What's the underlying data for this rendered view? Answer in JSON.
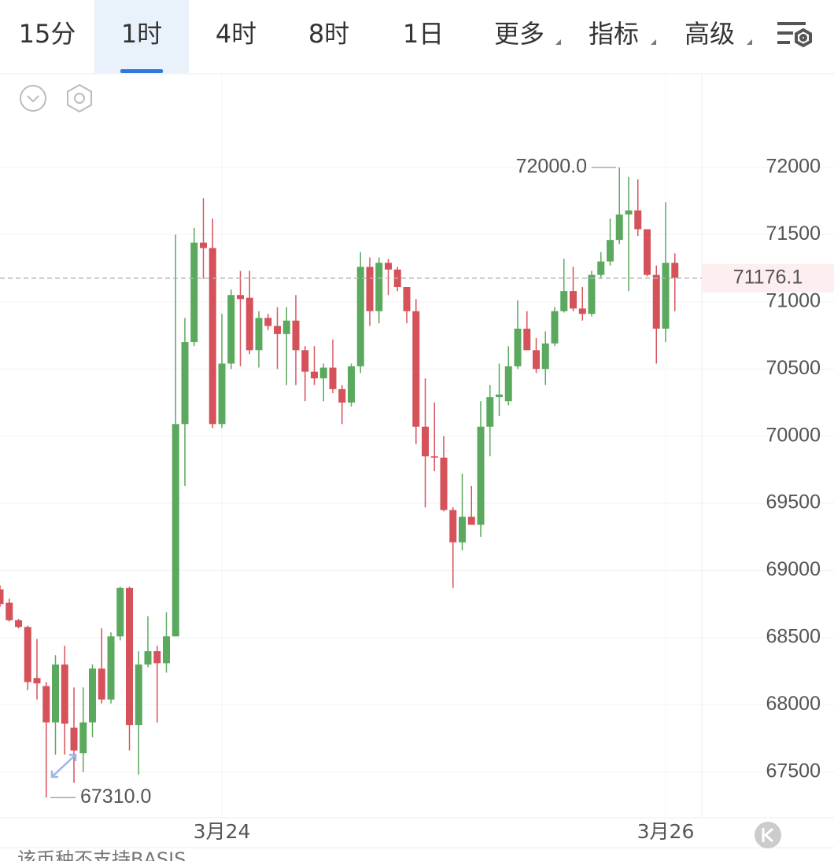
{
  "tabs": [
    "15分",
    "1时",
    "4时",
    "8时",
    "1日",
    "更多",
    "指标",
    "高级"
  ],
  "active_tab": 1,
  "footer_note": "该币种不支持BASIS",
  "chart_data": {
    "type": "candlestick",
    "up_color": "#5aa95e",
    "down_color": "#d6525b",
    "categories": [
      null,
      null,
      null,
      null,
      null,
      null,
      null,
      null,
      null,
      null,
      null,
      null,
      null,
      null,
      null,
      null,
      null,
      null,
      null,
      null,
      null,
      null,
      null,
      null,
      "3月24",
      null,
      null,
      null,
      null,
      null,
      null,
      null,
      null,
      null,
      null,
      null,
      null,
      null,
      null,
      null,
      null,
      null,
      null,
      null,
      null,
      null,
      null,
      null,
      null,
      null,
      null,
      null,
      null,
      null,
      null,
      null,
      null,
      null,
      null,
      null,
      null,
      null,
      null,
      null,
      null,
      null,
      null,
      null,
      null,
      null,
      null,
      null,
      "3月26",
      null
    ],
    "open": [
      68860,
      68760,
      68630,
      68580,
      68200,
      68140,
      67870,
      68300,
      67830,
      67640,
      67870,
      68270,
      68040,
      68510,
      68870,
      67850,
      68300,
      68400,
      68310,
      68510,
      70090,
      70700,
      71440,
      71400,
      70090,
      70540,
      71050,
      71030,
      70640,
      70880,
      70820,
      70760,
      70860,
      70640,
      70480,
      70430,
      70510,
      70350,
      70250,
      70520,
      71260,
      70930,
      71290,
      71240,
      71110,
      70930,
      70070,
      69850,
      69840,
      69450,
      69210,
      69400,
      69340,
      70070,
      70290,
      70260,
      70520,
      70800,
      70640,
      70500,
      70690,
      70930,
      71080,
      70950,
      70910,
      71200,
      71300,
      71460,
      71650,
      71680,
      71540,
      71200,
      70800,
      71290
    ],
    "high": [
      68890,
      68790,
      68640,
      68590,
      68490,
      68170,
      68370,
      68440,
      68130,
      68130,
      68300,
      68570,
      68540,
      68880,
      68880,
      68400,
      68660,
      68440,
      68690,
      71500,
      70880,
      71550,
      71770,
      71620,
      70910,
      71090,
      71230,
      71230,
      70930,
      70910,
      70960,
      70960,
      71050,
      70670,
      70670,
      70540,
      70720,
      70380,
      70540,
      71370,
      71330,
      71330,
      71320,
      71260,
      71110,
      71020,
      70430,
      70250,
      70000,
      69470,
      69720,
      69630,
      70260,
      70380,
      70540,
      70670,
      71010,
      70930,
      70730,
      70780,
      70960,
      71320,
      71260,
      71110,
      71230,
      71370,
      71620,
      72000,
      71930,
      71910,
      71540,
      71270,
      71740,
      71360
    ],
    "low": [
      68730,
      68620,
      68570,
      68110,
      68040,
      67310,
      67630,
      67630,
      67420,
      67500,
      67760,
      68010,
      68010,
      68480,
      67660,
      67480,
      68280,
      67870,
      68240,
      68510,
      69630,
      70670,
      71170,
      70060,
      70060,
      70500,
      70520,
      70610,
      70510,
      70790,
      70500,
      70380,
      70380,
      70260,
      70380,
      70260,
      70320,
      70090,
      70220,
      70470,
      70820,
      70840,
      71050,
      71080,
      70840,
      69940,
      69470,
      69740,
      69440,
      68870,
      69150,
      69340,
      69250,
      69850,
      70150,
      70230,
      70500,
      70640,
      70470,
      70380,
      70670,
      70920,
      70930,
      70860,
      70890,
      71170,
      71270,
      71430,
      71080,
      71490,
      71190,
      70540,
      70700,
      70930
    ],
    "close": [
      68750,
      68630,
      68580,
      68170,
      68160,
      67870,
      68300,
      67860,
      67660,
      67870,
      68270,
      68040,
      68510,
      68870,
      67850,
      68300,
      68400,
      68310,
      68510,
      70090,
      70700,
      71440,
      71400,
      70090,
      70540,
      71050,
      71020,
      70640,
      70880,
      70820,
      70760,
      70860,
      70640,
      70480,
      70430,
      70510,
      70350,
      70250,
      70520,
      71260,
      70930,
      71290,
      71240,
      71110,
      70930,
      70070,
      69850,
      69840,
      69450,
      69210,
      69400,
      69340,
      70070,
      70290,
      70310,
      70520,
      70800,
      70640,
      70500,
      70690,
      70930,
      71080,
      70950,
      70910,
      71200,
      71300,
      71460,
      71650,
      71680,
      71540,
      71200,
      70800,
      71290,
      71180
    ],
    "ylim": [
      67160,
      72690
    ],
    "yticks": [
      67500,
      68000,
      68500,
      69000,
      69500,
      70000,
      70500,
      71000,
      71500,
      72000
    ],
    "grid": true,
    "high_marker": {
      "value": 72000,
      "label": "72000.0"
    },
    "low_marker": {
      "value": 67310,
      "label": "67310.0"
    },
    "last_price": 71176.1
  }
}
